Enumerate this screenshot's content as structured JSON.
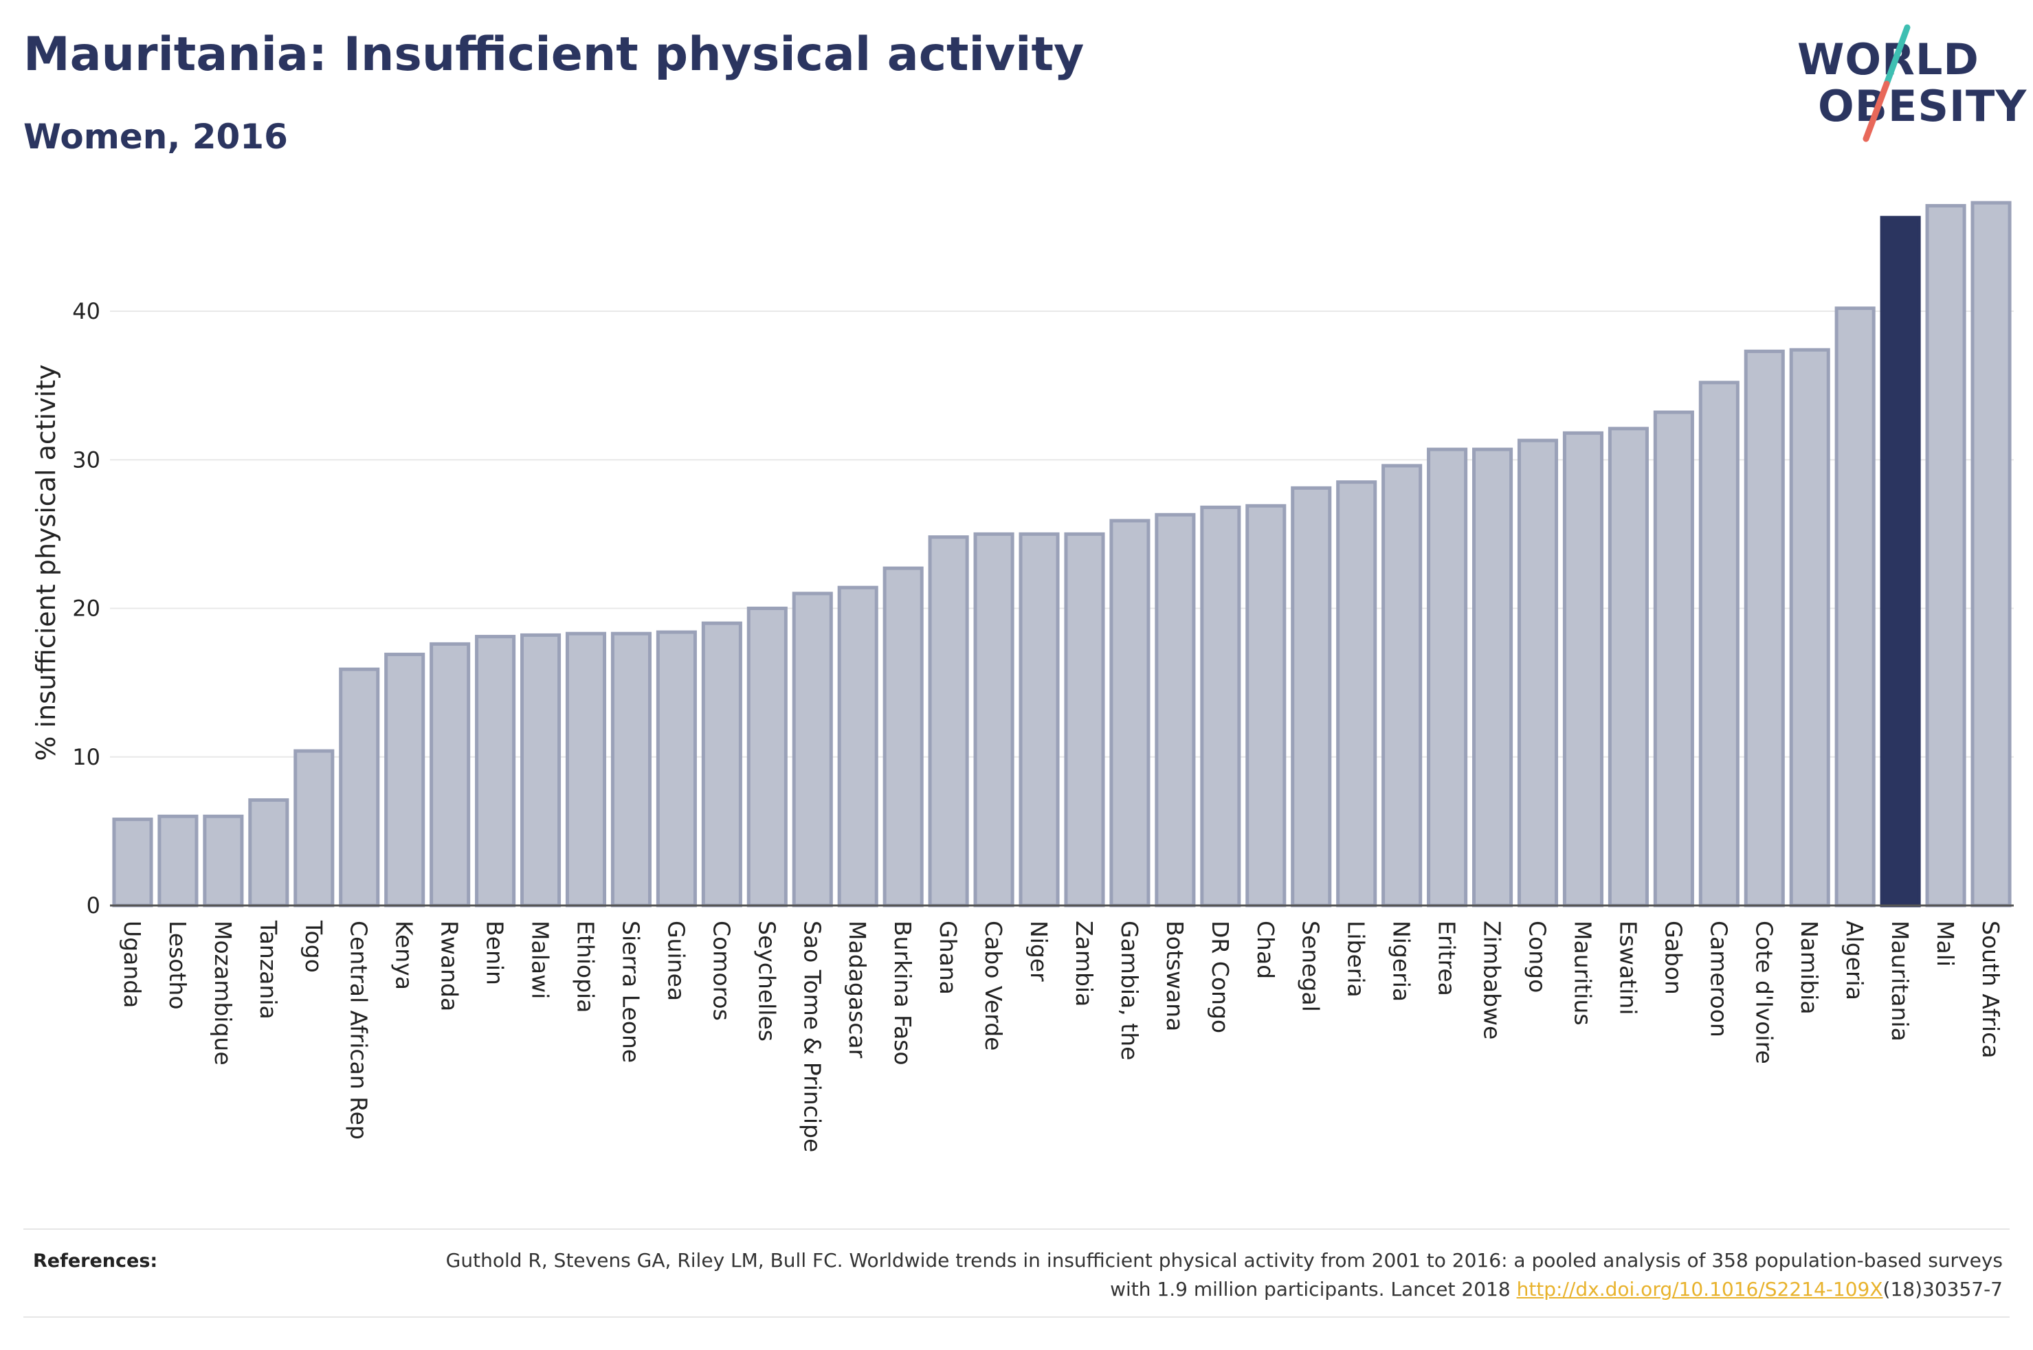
{
  "header": {
    "title": "Mauritania: Insufficient physical activity",
    "subtitle": "Women, 2016"
  },
  "logo": {
    "line1": "WORLD",
    "line2": "OBESITY",
    "accent_colors": [
      "#3ebfb2",
      "#e8685a"
    ]
  },
  "colors": {
    "bar": "#bcc1cf",
    "bar_border": "#9aa1b8",
    "highlight": "#2b3560",
    "title": "#2b3560",
    "link": "#e8b22c"
  },
  "chart_data": {
    "type": "bar",
    "title": "Mauritania: Insufficient physical activity",
    "subtitle": "Women, 2016",
    "xlabel": "",
    "ylabel": "% insufficient physical activity",
    "ylim": [
      0,
      48
    ],
    "yticks": [
      0,
      10,
      20,
      30,
      40
    ],
    "grid": true,
    "highlight": "Mauritania",
    "categories": [
      "Uganda",
      "Lesotho",
      "Mozambique",
      "Tanzania",
      "Togo",
      "Central African Rep",
      "Kenya",
      "Rwanda",
      "Benin",
      "Malawi",
      "Ethiopia",
      "Sierra Leone",
      "Guinea",
      "Comoros",
      "Seychelles",
      "Sao Tome & Principe",
      "Madagascar",
      "Burkina Faso",
      "Ghana",
      "Cabo Verde",
      "Niger",
      "Zambia",
      "Gambia, the",
      "Botswana",
      "DR Congo",
      "Chad",
      "Senegal",
      "Liberia",
      "Nigeria",
      "Eritrea",
      "Zimbabwe",
      "Congo",
      "Mauritius",
      "Eswatini",
      "Gabon",
      "Cameroon",
      "Cote d'Ivoire",
      "Namibia",
      "Algeria",
      "Mauritania",
      "Mali",
      "South Africa"
    ],
    "values": [
      5.8,
      6.0,
      6.0,
      7.1,
      10.4,
      15.9,
      16.9,
      17.6,
      18.1,
      18.2,
      18.3,
      18.3,
      18.4,
      19.0,
      20.0,
      21.0,
      21.4,
      22.7,
      24.8,
      25.0,
      25.0,
      25.0,
      25.9,
      26.3,
      26.8,
      26.9,
      28.1,
      28.5,
      29.6,
      30.7,
      30.7,
      31.3,
      31.8,
      32.1,
      33.2,
      35.2,
      37.3,
      37.4,
      40.2,
      46.3,
      47.1,
      47.3
    ]
  },
  "references": {
    "label": "References:",
    "text": "Guthold R, Stevens GA, Riley LM, Bull FC. Worldwide trends in insufficient physical activity from 2001 to 2016: a pooled analysis of 358 population-based surveys with 1.9 million participants. Lancet 2018 ",
    "link": "http://dx.doi.org/10.1016/S2214-109X",
    "suffix": "(18)30357-7"
  }
}
